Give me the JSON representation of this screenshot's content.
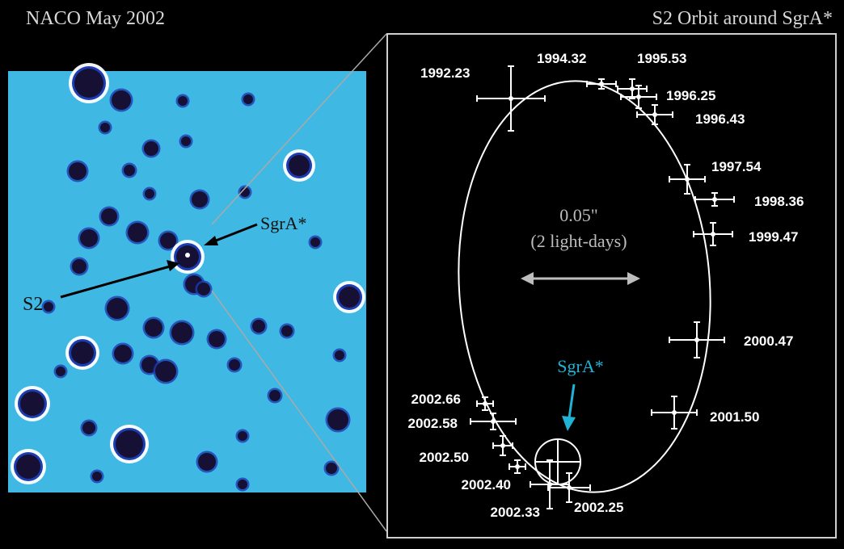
{
  "titles": {
    "left": "NACO May 2002",
    "right": "S2 Orbit around SgrA*"
  },
  "image_panel": {
    "sgra_label": "SgrA*",
    "s2_label": "S2"
  },
  "orbit_panel": {
    "scale_value": "0.05\"",
    "scale_desc": "(2 light-days)",
    "center_label": "SgrA*",
    "epochs": [
      {
        "label": "1992.23"
      },
      {
        "label": "1994.32"
      },
      {
        "label": "1995.53"
      },
      {
        "label": "1996.25"
      },
      {
        "label": "1996.43"
      },
      {
        "label": "1997.54"
      },
      {
        "label": "1998.36"
      },
      {
        "label": "1999.47"
      },
      {
        "label": "2000.47"
      },
      {
        "label": "2001.50"
      },
      {
        "label": "2002.66"
      },
      {
        "label": "2002.58"
      },
      {
        "label": "2002.50"
      },
      {
        "label": "2002.40"
      },
      {
        "label": "2002.33"
      },
      {
        "label": "2002.25"
      }
    ]
  },
  "colors": {
    "background": "#000000",
    "field": "#3fb9e3",
    "star": "#161035",
    "star_halo": "#1d3cb0",
    "annotation": "#ffffff",
    "scale_text": "#bdbdbd",
    "sgra_highlight": "#1fb4d6",
    "frame": "#cfcfcf"
  }
}
